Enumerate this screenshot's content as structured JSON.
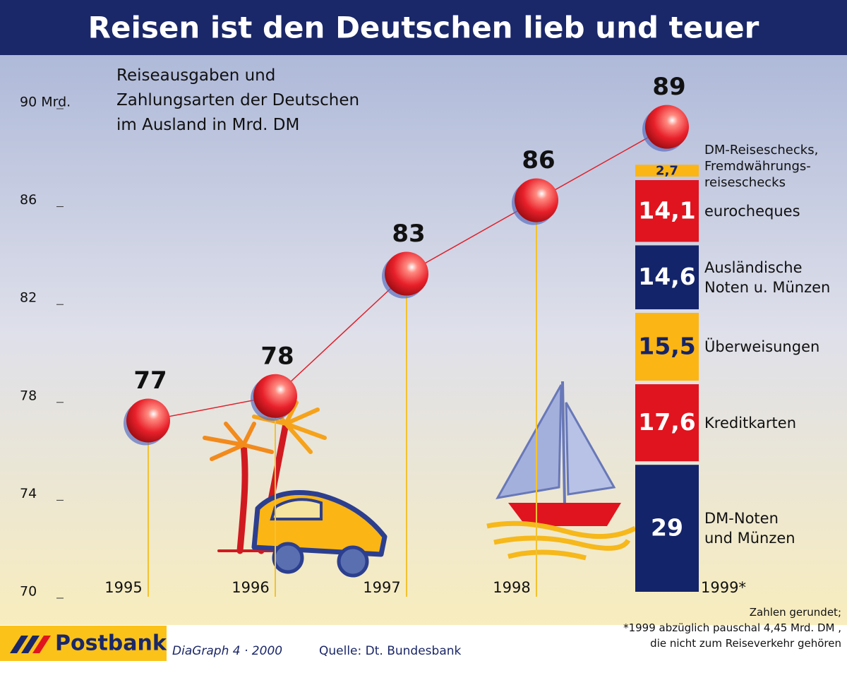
{
  "chart_data": {
    "type": "line",
    "title": "Reisen ist den Deutschen lieb und teuer",
    "subtitle": "Reiseausgaben und\nZahlungsarten der Deutschen\nim Ausland  in Mrd. DM",
    "categories": [
      "1995",
      "1996",
      "1997",
      "1998",
      "1999*"
    ],
    "values": [
      77,
      78,
      83,
      86,
      89
    ],
    "color": "#e0202a",
    "ylim": [
      70,
      90
    ],
    "yticks": [
      70,
      74,
      78,
      82,
      86,
      {
        "value": 90,
        "label": "90 Mrd."
      }
    ],
    "breakdown": {
      "categories": [
        "DM-Noten\nund Münzen",
        "Kreditkarten",
        "Überweisungen",
        "Ausländische\nNoten u. Münzen",
        "eurocheques",
        "DM-Reiseschecks,\nFremdwährungs-\nreiseschecks"
      ],
      "values": [
        29,
        17.6,
        15.5,
        14.6,
        14.1,
        2.7
      ],
      "value_labels": [
        "29",
        "17,6",
        "15,5",
        "14,6",
        "14,1",
        "2,7"
      ],
      "colors": [
        "#14246a",
        "#e0141e",
        "#fbb515",
        "#14246a",
        "#e0141e",
        "#fbb515"
      ]
    },
    "notes": "Zahlen gerundet;\n*1999 abzüglich pauschal 4,45 Mrd. DM ,\ndie nicht zum Reiseverkehr gehören",
    "brand": "Postbank",
    "credit": "DiaGraph 4 · 2000",
    "source": "Quelle: Dt. Bundesbank"
  }
}
